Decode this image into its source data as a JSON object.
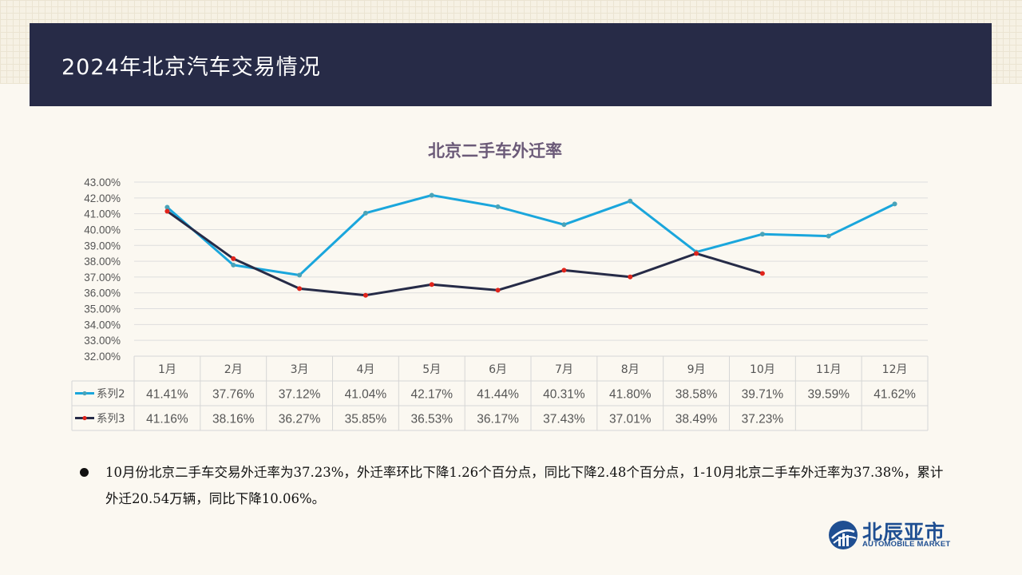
{
  "header": {
    "title": "2024年北京汽车交易情况"
  },
  "chart_data": {
    "type": "line",
    "title": "北京二手车外迁率",
    "categories": [
      "1月",
      "2月",
      "3月",
      "4月",
      "5月",
      "6月",
      "7月",
      "8月",
      "9月",
      "10月",
      "11月",
      "12月"
    ],
    "y_ticks": [
      "32.00%",
      "33.00%",
      "34.00%",
      "35.00%",
      "36.00%",
      "37.00%",
      "38.00%",
      "39.00%",
      "40.00%",
      "41.00%",
      "42.00%",
      "43.00%"
    ],
    "ylim": [
      32,
      43
    ],
    "grid": true,
    "legend": "data-table",
    "series": [
      {
        "name": "系列2",
        "color": "#1aa6dc",
        "marker_color": "#4aa3b8",
        "values": [
          41.41,
          37.76,
          37.12,
          41.04,
          42.17,
          41.44,
          40.31,
          41.8,
          38.58,
          39.71,
          39.59,
          41.62
        ],
        "labels": [
          "41.41%",
          "37.76%",
          "37.12%",
          "41.04%",
          "42.17%",
          "41.44%",
          "40.31%",
          "41.80%",
          "38.58%",
          "39.71%",
          "39.59%",
          "41.62%"
        ]
      },
      {
        "name": "系列3",
        "color": "#262b47",
        "marker_color": "#e0241b",
        "values": [
          41.16,
          38.16,
          36.27,
          35.85,
          36.53,
          36.17,
          37.43,
          37.01,
          38.49,
          37.23,
          null,
          null
        ],
        "labels": [
          "41.16%",
          "38.16%",
          "36.27%",
          "35.85%",
          "36.53%",
          "36.17%",
          "37.43%",
          "37.01%",
          "38.49%",
          "37.23%",
          "",
          ""
        ]
      }
    ]
  },
  "bullet": {
    "text": "10月份北京二手车交易外迁率为37.23%，外迁率环比下降1.26个百分点，同比下降2.48个百分点，1-10月北京二手车外迁率为37.38%，累计外迁20.54万辆，同比下降10.06%。"
  },
  "logo": {
    "cn": "北辰亚市",
    "en": "AUTOMOBILE MARKET",
    "icon": "globe-icon"
  }
}
